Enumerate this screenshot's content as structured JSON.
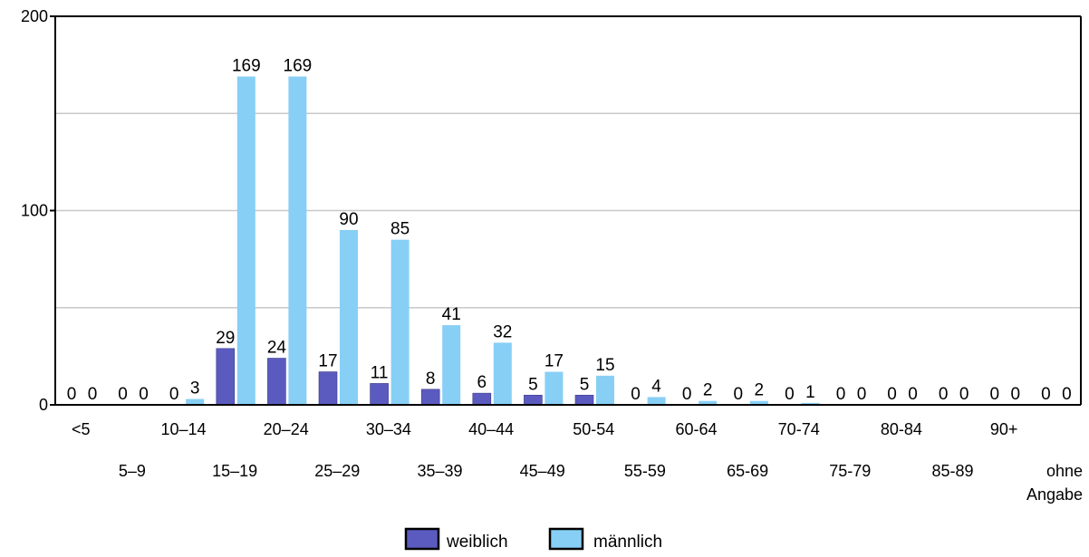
{
  "chart_data": {
    "type": "bar",
    "categories": [
      "<5",
      "5–9",
      "10–14",
      "15–19",
      "20–24",
      "25–29",
      "30–34",
      "35–39",
      "40–44",
      "45–49",
      "50-54",
      "55-59",
      "60-64",
      "65-69",
      "70-74",
      "75-79",
      "80-84",
      "85-89",
      "90+",
      "ohne Angabe"
    ],
    "category_label_lines": [
      [
        "<5"
      ],
      [
        "5–9"
      ],
      [
        "10–14"
      ],
      [
        "15–19"
      ],
      [
        "20–24"
      ],
      [
        "25–29"
      ],
      [
        "30–34"
      ],
      [
        "35–39"
      ],
      [
        "40–44"
      ],
      [
        "45–49"
      ],
      [
        "50-54"
      ],
      [
        "55-59"
      ],
      [
        "60-64"
      ],
      [
        "65-69"
      ],
      [
        "70-74"
      ],
      [
        "75-79"
      ],
      [
        "80-84"
      ],
      [
        "85-89"
      ],
      [
        "90+"
      ],
      [
        "ohne",
        "Angabe"
      ]
    ],
    "series": [
      {
        "name": "weiblich",
        "color": "#5b5bbf",
        "values": [
          0,
          0,
          0,
          29,
          24,
          17,
          11,
          8,
          6,
          5,
          5,
          0,
          0,
          0,
          0,
          0,
          0,
          0,
          0,
          0
        ]
      },
      {
        "name": "männlich",
        "color": "#87cff5",
        "values": [
          0,
          0,
          3,
          169,
          169,
          90,
          85,
          41,
          32,
          17,
          15,
          4,
          2,
          2,
          1,
          0,
          0,
          0,
          0,
          0
        ]
      }
    ],
    "y_ticks": [
      0,
      100,
      200
    ],
    "ylim": [
      0,
      200
    ],
    "grid": true,
    "gridline_values": [
      50,
      100,
      150,
      200
    ],
    "legend_position": "bottom-center",
    "xlabel": "",
    "ylabel": "",
    "title": ""
  }
}
